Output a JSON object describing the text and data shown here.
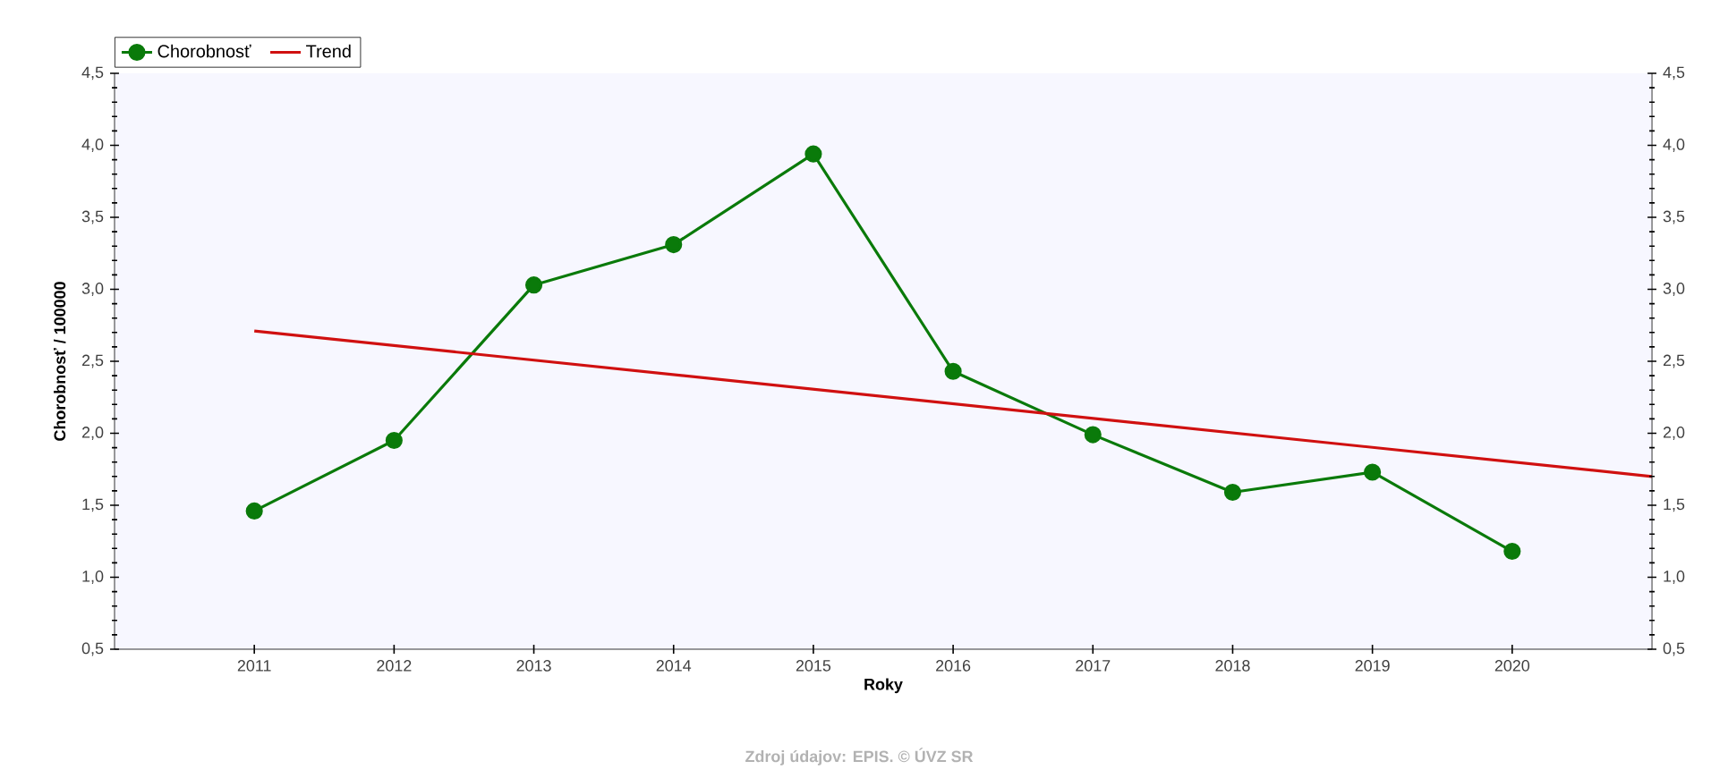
{
  "chart_data": {
    "type": "line",
    "xlabel": "Roky",
    "ylabel": "Chorobnosť / 100000",
    "annotations": [
      "Zdroj údajov: EPIS. © ÚVZ SR"
    ],
    "x": [
      2011,
      2012,
      2013,
      2014,
      2015,
      2016,
      2017,
      2018,
      2019,
      2020
    ],
    "series": [
      {
        "name": "Chorobnosť",
        "color": "#0a7a0a",
        "values": [
          1.46,
          1.95,
          3.03,
          3.31,
          3.94,
          2.43,
          1.99,
          1.59,
          1.73,
          1.18
        ]
      },
      {
        "name": "Trend",
        "color": "#d01010",
        "marker": "none",
        "x": [
          2011,
          2021
        ],
        "values": [
          2.71,
          1.7
        ]
      }
    ],
    "xlim": [
      2010,
      2021
    ],
    "xticks": [
      2011,
      2012,
      2013,
      2014,
      2015,
      2016,
      2017,
      2018,
      2019,
      2020
    ],
    "ylim": [
      0.5,
      4.5
    ],
    "yticks": [
      {
        "value": 0.5,
        "label": "0,5"
      },
      {
        "value": 1.0,
        "label": "1,0"
      },
      {
        "value": 1.5,
        "label": "1,5"
      },
      {
        "value": 2.0,
        "label": "2,0"
      },
      {
        "value": 2.5,
        "label": "2,5"
      },
      {
        "value": 3.0,
        "label": "3,0"
      },
      {
        "value": 3.5,
        "label": "3,5"
      },
      {
        "value": 4.0,
        "label": "4,0"
      },
      {
        "value": 4.5,
        "label": "4,5"
      }
    ],
    "y2lim": [
      0.5,
      4.5
    ],
    "y2ticks": [
      {
        "value": 0.5,
        "label": "0,5"
      },
      {
        "value": 1.0,
        "label": "1,0"
      },
      {
        "value": 1.5,
        "label": "1,5"
      },
      {
        "value": 2.0,
        "label": "2,0"
      },
      {
        "value": 2.5,
        "label": "2,5"
      },
      {
        "value": 3.0,
        "label": "3,0"
      },
      {
        "value": 3.5,
        "label": "3,5"
      },
      {
        "value": 4.0,
        "label": "4,0"
      },
      {
        "value": 4.5,
        "label": "4,5"
      }
    ],
    "legend": "top left",
    "marker": "circle",
    "line_style": "solid"
  }
}
